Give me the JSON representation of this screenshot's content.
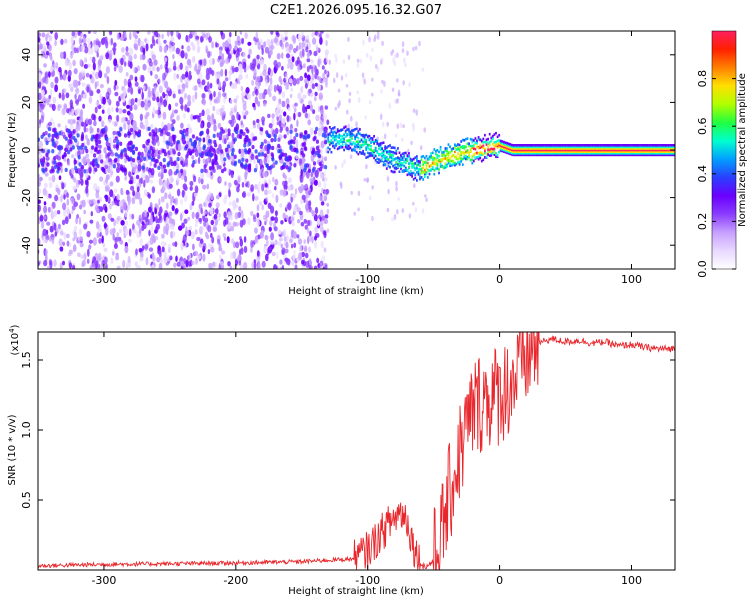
{
  "chart_data": [
    {
      "type": "heatmap",
      "title": "C2E1.2026.095.16.32.G07",
      "xlabel": "Height of straight line (km)",
      "ylabel": "Frequency (Hz)",
      "xlim": [
        -350,
        133
      ],
      "ylim": [
        -50,
        50
      ],
      "xticks": [
        -300,
        -200,
        -100,
        0,
        100
      ],
      "yticks": [
        -40,
        -20,
        0,
        20,
        40
      ],
      "xtick_labels": [
        "-300",
        "-200",
        "-100",
        "0",
        "100"
      ],
      "ytick_labels": [
        "-40",
        "-20",
        "0",
        "20",
        "40"
      ],
      "colorbar": {
        "label": "Normalized spectral amplitude",
        "range": [
          0,
          1
        ],
        "ticks": [
          0.0,
          0.2,
          0.4,
          0.6,
          0.8
        ],
        "tick_labels": [
          "0.0",
          "0.2",
          "0.4",
          "0.6",
          "0.8"
        ],
        "colormap": [
          "#ffffff",
          "#e8d8ff",
          "#c7a0ff",
          "#8a3cff",
          "#6a00ff",
          "#2a40ff",
          "#00a0ff",
          "#00ffd0",
          "#20ff40",
          "#b0ff00",
          "#ffe000",
          "#ff8000",
          "#ff2000",
          "#ff2060"
        ]
      },
      "ridge": {
        "description": "dominant frequency track versus height",
        "x": [
          -130,
          -120,
          -110,
          -100,
          -90,
          -80,
          -70,
          -60,
          -50,
          -40,
          -30,
          -20,
          -10,
          0,
          10,
          20,
          40,
          60,
          80,
          100,
          120,
          133
        ],
        "y": [
          4,
          5,
          4,
          2,
          -1,
          -4,
          -6,
          -8,
          -5,
          -3,
          -1,
          0,
          1,
          2,
          0,
          0,
          0,
          0,
          0,
          0,
          0,
          0
        ]
      }
    },
    {
      "type": "line",
      "xlabel": "Height of straight line (km)",
      "ylabel": "SNR (10 * v/v)",
      "yscale_label": "(x10",
      "yscale_exp": "4",
      "yscale_close": ")",
      "xlim": [
        -350,
        133
      ],
      "ylim": [
        0,
        17000
      ],
      "xticks": [
        -300,
        -200,
        -100,
        0,
        100
      ],
      "yticks": [
        5000,
        10000,
        15000
      ],
      "xtick_labels": [
        "-300",
        "-200",
        "-100",
        "0",
        "100"
      ],
      "ytick_labels": [
        "0.5",
        "1.0",
        "1.5"
      ],
      "line_color": "#e8262b",
      "series": [
        {
          "name": "SNR",
          "x": [
            -350,
            -300,
            -250,
            -200,
            -150,
            -110,
            -100,
            -95,
            -90,
            -85,
            -80,
            -75,
            -70,
            -66,
            -62,
            -58,
            -55,
            -50,
            -45,
            -40,
            -35,
            -30,
            -25,
            -20,
            -15,
            -10,
            -5,
            0,
            5,
            10,
            15,
            20,
            25,
            30,
            35,
            40,
            50,
            60,
            70,
            80,
            90,
            100,
            110,
            120,
            133
          ],
          "y": [
            300,
            400,
            450,
            500,
            600,
            800,
            1400,
            2000,
            2600,
            3200,
            3700,
            4200,
            3600,
            2000,
            800,
            300,
            250,
            700,
            2000,
            4500,
            6500,
            8500,
            10000,
            11500,
            12000,
            12300,
            12400,
            12600,
            13000,
            13500,
            14200,
            15200,
            15800,
            16200,
            16400,
            16500,
            16300,
            16400,
            16200,
            16300,
            16000,
            16100,
            15900,
            15800,
            15800
          ]
        }
      ]
    }
  ]
}
